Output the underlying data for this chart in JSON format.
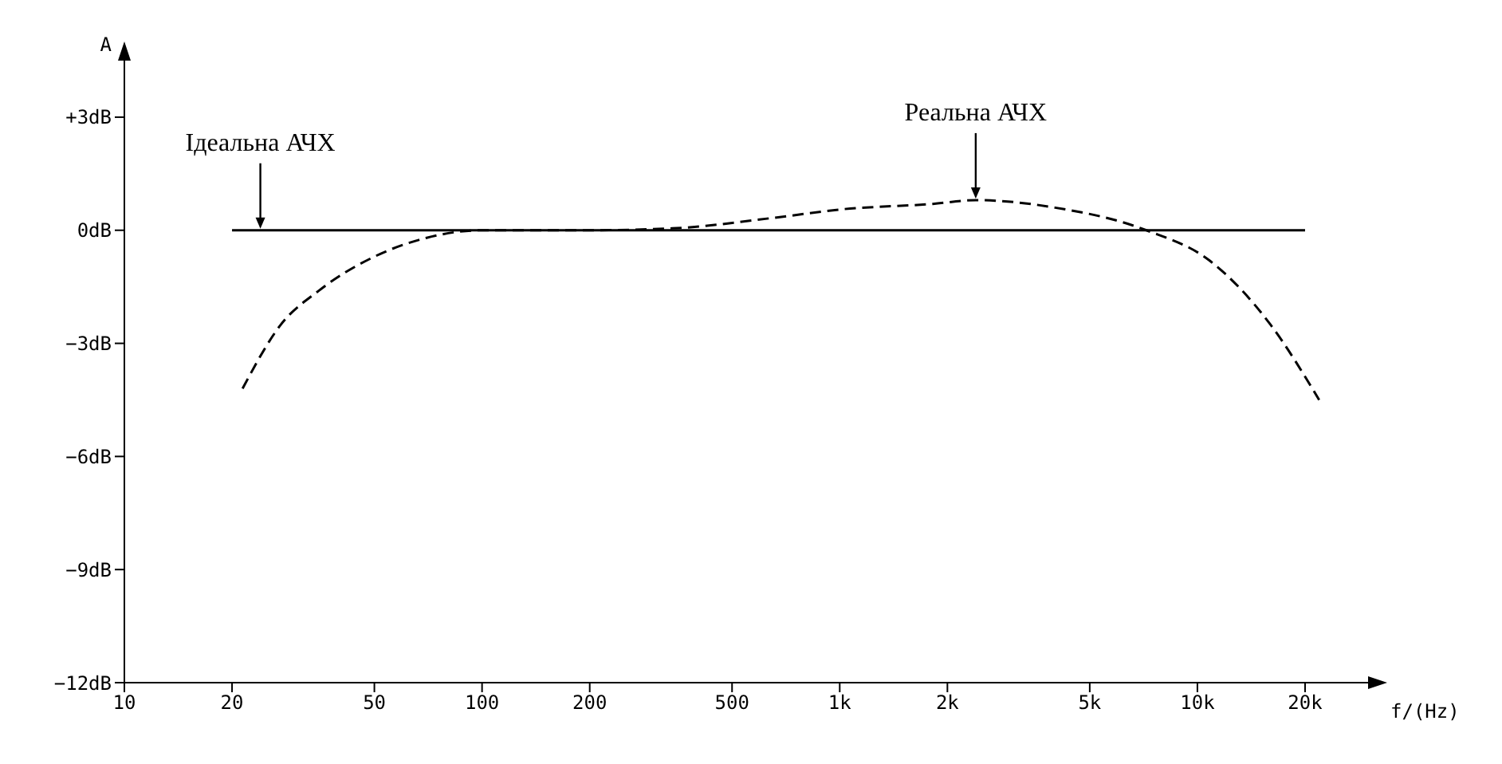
{
  "chart_data": {
    "type": "line",
    "xlabel": "f/(Hz)",
    "ylabel": "A",
    "log": "x",
    "marker": "none",
    "xlim": [
      10,
      30000
    ],
    "ylim": [
      -12,
      4.5
    ],
    "xticks": [
      10,
      20,
      50,
      100,
      200,
      500,
      {
        "value": 1000,
        "label": "1k"
      },
      {
        "value": 2000,
        "label": "2k"
      },
      {
        "value": 5000,
        "label": "5k"
      },
      {
        "value": 10000,
        "label": "10k"
      },
      {
        "value": 20000,
        "label": "20k"
      }
    ],
    "yticks": [
      {
        "value": 3,
        "label": "+3dB"
      },
      {
        "value": 0,
        "label": "0dB"
      },
      {
        "value": -3,
        "label": "−3dB"
      },
      {
        "value": -6,
        "label": "−6dB"
      },
      {
        "value": -9,
        "label": "−9dB"
      },
      {
        "value": -12,
        "label": "−12dB"
      }
    ],
    "series": [
      {
        "color": "#000000",
        "line_style": "solid",
        "x": [
          20,
          20000
        ],
        "values": [
          0,
          0
        ]
      },
      {
        "color": "#000000",
        "line_style": "dashed",
        "x": [
          21.4,
          27.4,
          35,
          50,
          70,
          100,
          200,
          340,
          680,
          1000,
          1820,
          2400,
          4000,
          7200,
          10800,
          16000,
          21900
        ],
        "values": [
          -4.2,
          -2.5,
          -1.6,
          -0.7,
          -0.2,
          0,
          0,
          0.05,
          0.35,
          0.55,
          0.7,
          0.8,
          0.6,
          0,
          -0.8,
          -2.5,
          -4.5
        ]
      }
    ],
    "annotations": [
      {
        "text": "Ідеальна АЧХ",
        "x": 24,
        "y": 0
      },
      {
        "text": "Реальна АЧХ",
        "x": 2400,
        "y": 0.8
      }
    ]
  }
}
